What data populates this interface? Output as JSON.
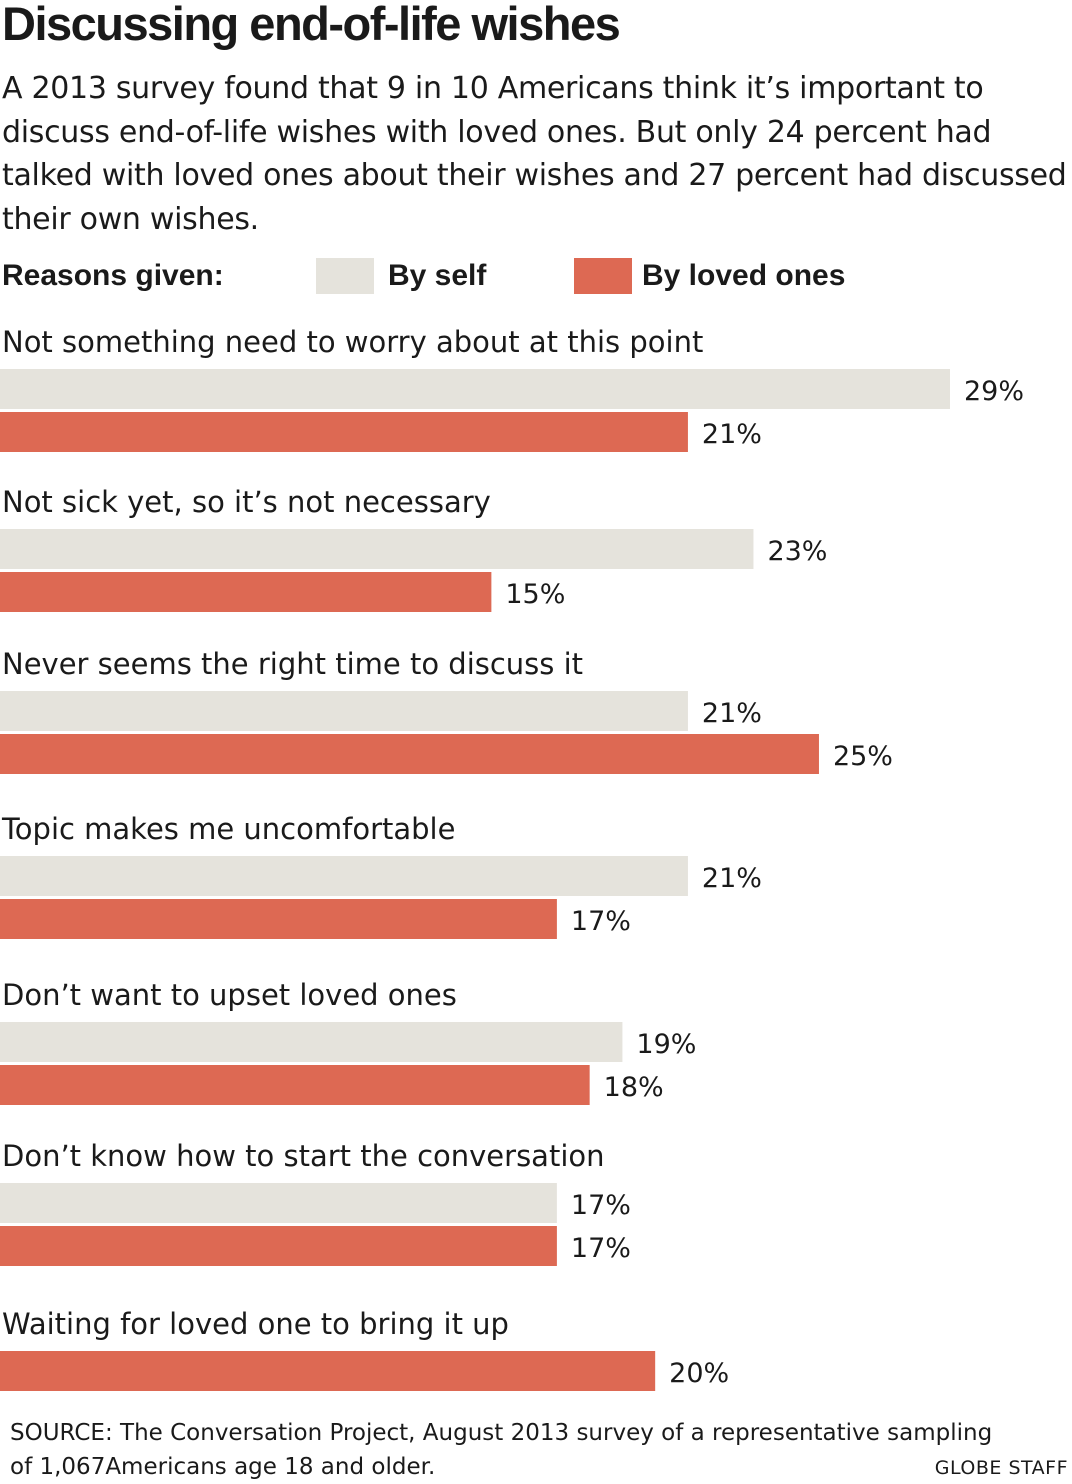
{
  "title": "Discussing end-of-life wishes",
  "subtitle": "A 2013 survey found that 9 in 10 Americans think it’s important to discuss end-of-life wishes with loved ones. But only 24 percent had talked with loved ones about their wishes and 27 percent had discussed their own wishes.",
  "legend": {
    "heading": "Reasons given:",
    "items": [
      {
        "label": "By self",
        "color": "#e5e3dc"
      },
      {
        "label": "By loved ones",
        "color": "#dd6953"
      }
    ]
  },
  "chart_data": {
    "type": "bar",
    "orientation": "horizontal",
    "categories": [
      "Not something need to worry about at this point",
      "Not sick yet, so it’s not necessary",
      "Never seems the right time to discuss it",
      "Topic makes me uncomfortable",
      "Don’t want to upset loved ones",
      "Don’t know how to start the conversation",
      "Waiting for loved one to bring it up"
    ],
    "series": [
      {
        "name": "By self",
        "color": "#e5e3dc",
        "values": [
          29,
          23,
          21,
          21,
          19,
          17,
          null
        ]
      },
      {
        "name": "By loved ones",
        "color": "#dd6953",
        "values": [
          21,
          15,
          25,
          17,
          18,
          17,
          20
        ]
      }
    ],
    "value_suffix": "%",
    "xlim": [
      0,
      29
    ],
    "grid": false,
    "legend_position": "top"
  },
  "source": "SOURCE: The Conversation Project, August 2013 survey of a representative sampling of 1,067Americans age 18 and older.",
  "credit": "GLOBE STAFF"
}
